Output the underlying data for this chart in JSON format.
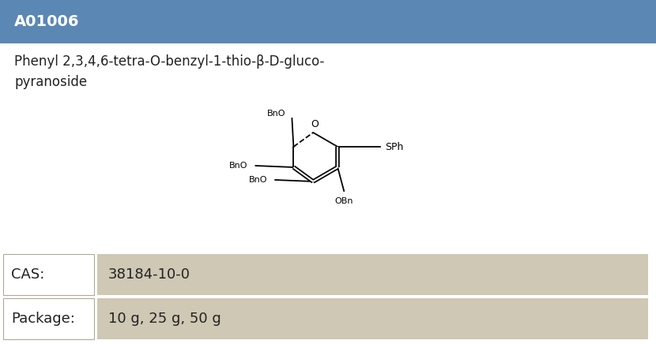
{
  "product_id": "A01006",
  "name_line1": "Phenyl 2,3,4,6-tetra-O-benzyl-1-thio-β-D-gluco-",
  "name_line2": "pyranoside",
  "cas_label": "CAS:",
  "cas_value": "38184-10-0",
  "package_label": "Package:",
  "package_value": "10 g, 25 g, 50 g",
  "header_bg": "#5b87b5",
  "header_text": "#ffffff",
  "body_bg": "#ffffff",
  "row_bg": "#cec8b4",
  "border_color": "#b0a898",
  "title_fontsize": 14,
  "name_fontsize": 12,
  "table_fontsize": 13,
  "struct_fontsize": 8
}
